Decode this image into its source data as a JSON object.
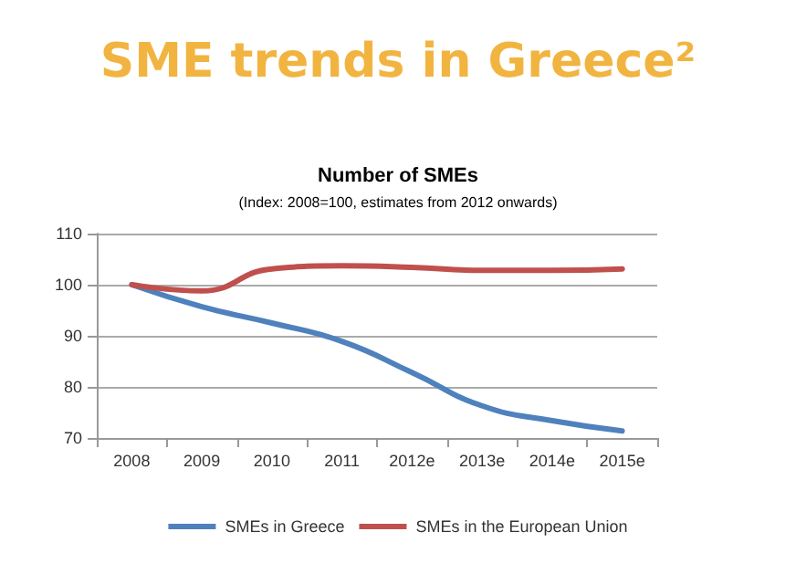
{
  "chart_data": {
    "type": "line",
    "title": "SME trends in Greece²",
    "subtitle": "Number of SMEs",
    "annotations": [
      "(Index: 2008=100, estimates from 2012 onwards)"
    ],
    "categories": [
      "2008",
      "2009",
      "2010",
      "2011",
      "2012e",
      "2013e",
      "2014e",
      "2015e"
    ],
    "series": [
      {
        "name": "SMEs in Greece",
        "color": "#4f81bd",
        "values": [
          100,
          95.7,
          92.5,
          88.9,
          82.8,
          76.3,
          73.4,
          71.4
        ]
      },
      {
        "name": "SMEs in the European Union",
        "color": "#c0504d",
        "values": [
          100,
          98.8,
          103.1,
          103.7,
          103.4,
          102.8,
          102.8,
          103.1
        ]
      }
    ],
    "ylim": [
      70,
      110
    ],
    "yticks": [
      70,
      80,
      90,
      100,
      110
    ],
    "grid": "y",
    "legend": "bottom",
    "marker": "none",
    "line_style": "solid"
  }
}
